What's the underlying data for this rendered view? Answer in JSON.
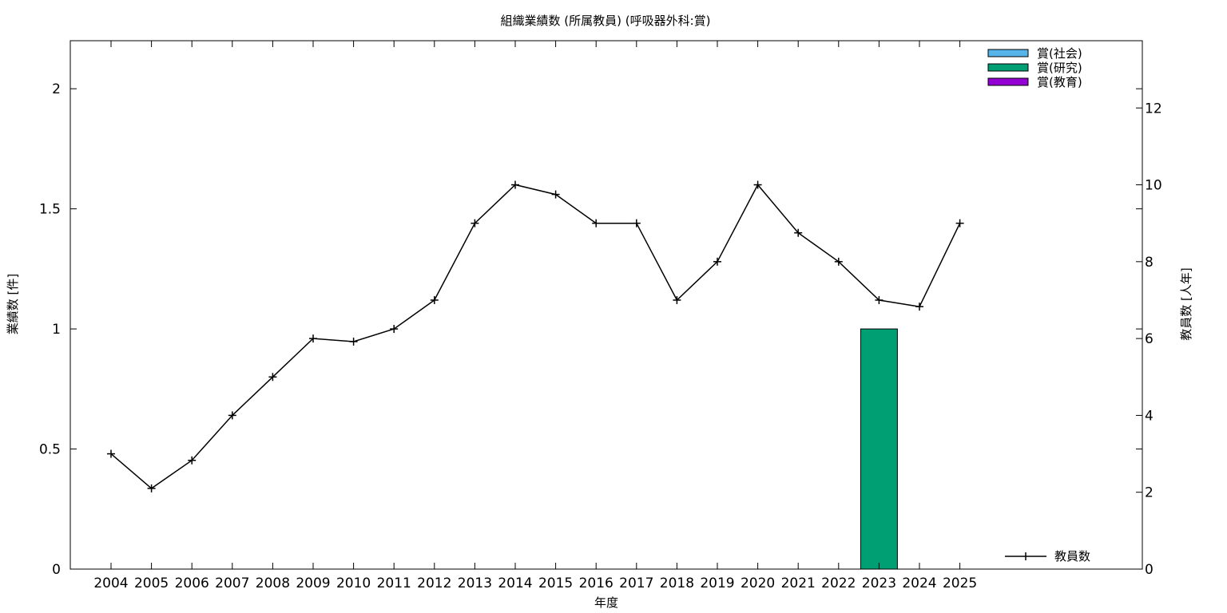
{
  "chart_data": {
    "type": "bar",
    "title": "組織業績数 (所属教員) (呼吸器外科:賞)",
    "xlabel": "年度",
    "ylabel": "業績数 [件]",
    "y2label": "教員数 [人年]",
    "categories": [
      "2004",
      "2005",
      "2006",
      "2007",
      "2008",
      "2009",
      "2010",
      "2011",
      "2012",
      "2013",
      "2014",
      "2015",
      "2016",
      "2017",
      "2018",
      "2019",
      "2020",
      "2021",
      "2022",
      "2023",
      "2024",
      "2025"
    ],
    "ylim": [
      0,
      2.2
    ],
    "y2lim": [
      0,
      13.75
    ],
    "yticks": [
      0,
      0.5,
      1,
      1.5,
      2
    ],
    "yticklabels": [
      "0",
      "0.5",
      "1",
      "1.5",
      "2"
    ],
    "y2ticks": [
      0,
      2,
      4,
      6,
      8,
      10,
      12
    ],
    "grid": false,
    "series": [
      {
        "name": "賞(社会)",
        "kind": "bar",
        "axis": "left",
        "color": "#56B4E9",
        "values": [
          0,
          0,
          0,
          0,
          0,
          0,
          0,
          0,
          0,
          0,
          0,
          0,
          0,
          0,
          0,
          0,
          0,
          0,
          0,
          0,
          0,
          0
        ]
      },
      {
        "name": "賞(研究)",
        "kind": "bar",
        "axis": "left",
        "color": "#009E73",
        "values": [
          0,
          0,
          0,
          0,
          0,
          0,
          0,
          0,
          0,
          0,
          0,
          0,
          0,
          0,
          0,
          0,
          0,
          0,
          0,
          1,
          0,
          0
        ]
      },
      {
        "name": "賞(教育)",
        "kind": "bar",
        "axis": "left",
        "color": "#9400D3",
        "values": [
          0,
          0,
          0,
          0,
          0,
          0,
          0,
          0,
          0,
          0,
          0,
          0,
          0,
          0,
          0,
          0,
          0,
          0,
          0,
          0,
          0,
          0
        ]
      },
      {
        "name": "教員数",
        "kind": "line",
        "axis": "right",
        "color": "#000000",
        "values": [
          3.0,
          2.1,
          2.83,
          4.0,
          5.0,
          6.0,
          5.92,
          6.25,
          7.0,
          9.0,
          10.0,
          9.75,
          9.0,
          9.0,
          7.0,
          8.0,
          10.0,
          8.75,
          8.0,
          7.0,
          6.83,
          9.0
        ]
      }
    ],
    "legend": {
      "bars_position": "top-right",
      "line_position": "bottom-right"
    }
  }
}
